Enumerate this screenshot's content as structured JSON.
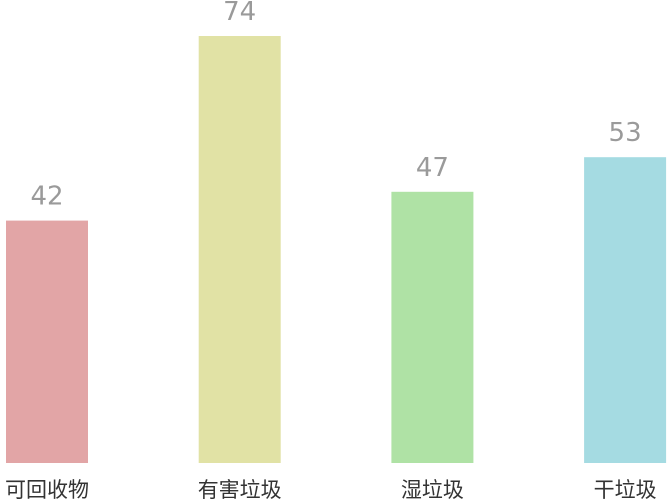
{
  "chart_data": {
    "type": "bar",
    "title": "",
    "xlabel": "",
    "ylabel": "",
    "categories": [
      "可回收物",
      "有害垃圾",
      "湿垃圾",
      "干垃圾"
    ],
    "values": [
      42,
      74,
      47,
      53
    ],
    "colors": [
      "#e2a5a6",
      "#e1e2a5",
      "#afe2a5",
      "#a5dbe2"
    ],
    "ylim": [
      0,
      74
    ],
    "grid": false,
    "legend": "none",
    "data_labels": true
  }
}
